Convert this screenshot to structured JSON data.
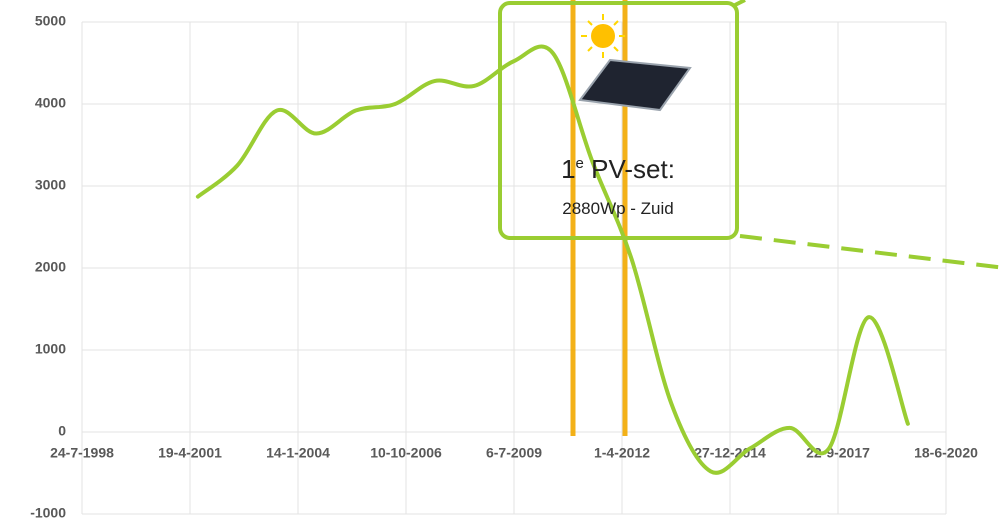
{
  "chart_data": {
    "type": "line",
    "x": [
      "2001-07-01",
      "2002-07-01",
      "2003-07-01",
      "2004-07-01",
      "2005-07-01",
      "2006-07-01",
      "2007-07-01",
      "2008-07-01",
      "2009-07-01",
      "2010-07-01",
      "2011-07-01",
      "2012-07-01",
      "2013-07-01",
      "2014-07-01",
      "2015-07-01",
      "2016-07-01",
      "2017-07-01",
      "2018-07-01",
      "2019-07-01"
    ],
    "values": [
      2870,
      3250,
      3920,
      3640,
      3920,
      4000,
      4280,
      4220,
      4520,
      4620,
      3300,
      2100,
      350,
      -480,
      -200,
      50,
      -200,
      1400,
      100
    ],
    "color": "#9acd32",
    "xlim": [
      "1998-07-24",
      "2020-06-18"
    ],
    "xticks": [
      {
        "value": "1998-07-24",
        "label": "24-7-1998"
      },
      {
        "value": "2001-04-19",
        "label": "19-4-2001"
      },
      {
        "value": "2004-01-14",
        "label": "14-1-2004"
      },
      {
        "value": "2006-10-10",
        "label": "10-10-2006"
      },
      {
        "value": "2009-07-06",
        "label": "6-7-2009"
      },
      {
        "value": "2012-04-01",
        "label": "1-4-2012"
      },
      {
        "value": "2014-12-27",
        "label": "27-12-2014"
      },
      {
        "value": "2017-09-22",
        "label": "22-9-2017"
      },
      {
        "value": "2020-06-18",
        "label": "18-6-2020"
      }
    ],
    "ylim": [
      -1000,
      5000
    ],
    "yticks": [
      -1000,
      0,
      1000,
      2000,
      3000,
      4000,
      5000
    ],
    "grid": true,
    "annotation": {
      "number": "1",
      "superscript": "e",
      "title": " PV-set:",
      "detail": "2880Wp - Zuid"
    }
  }
}
